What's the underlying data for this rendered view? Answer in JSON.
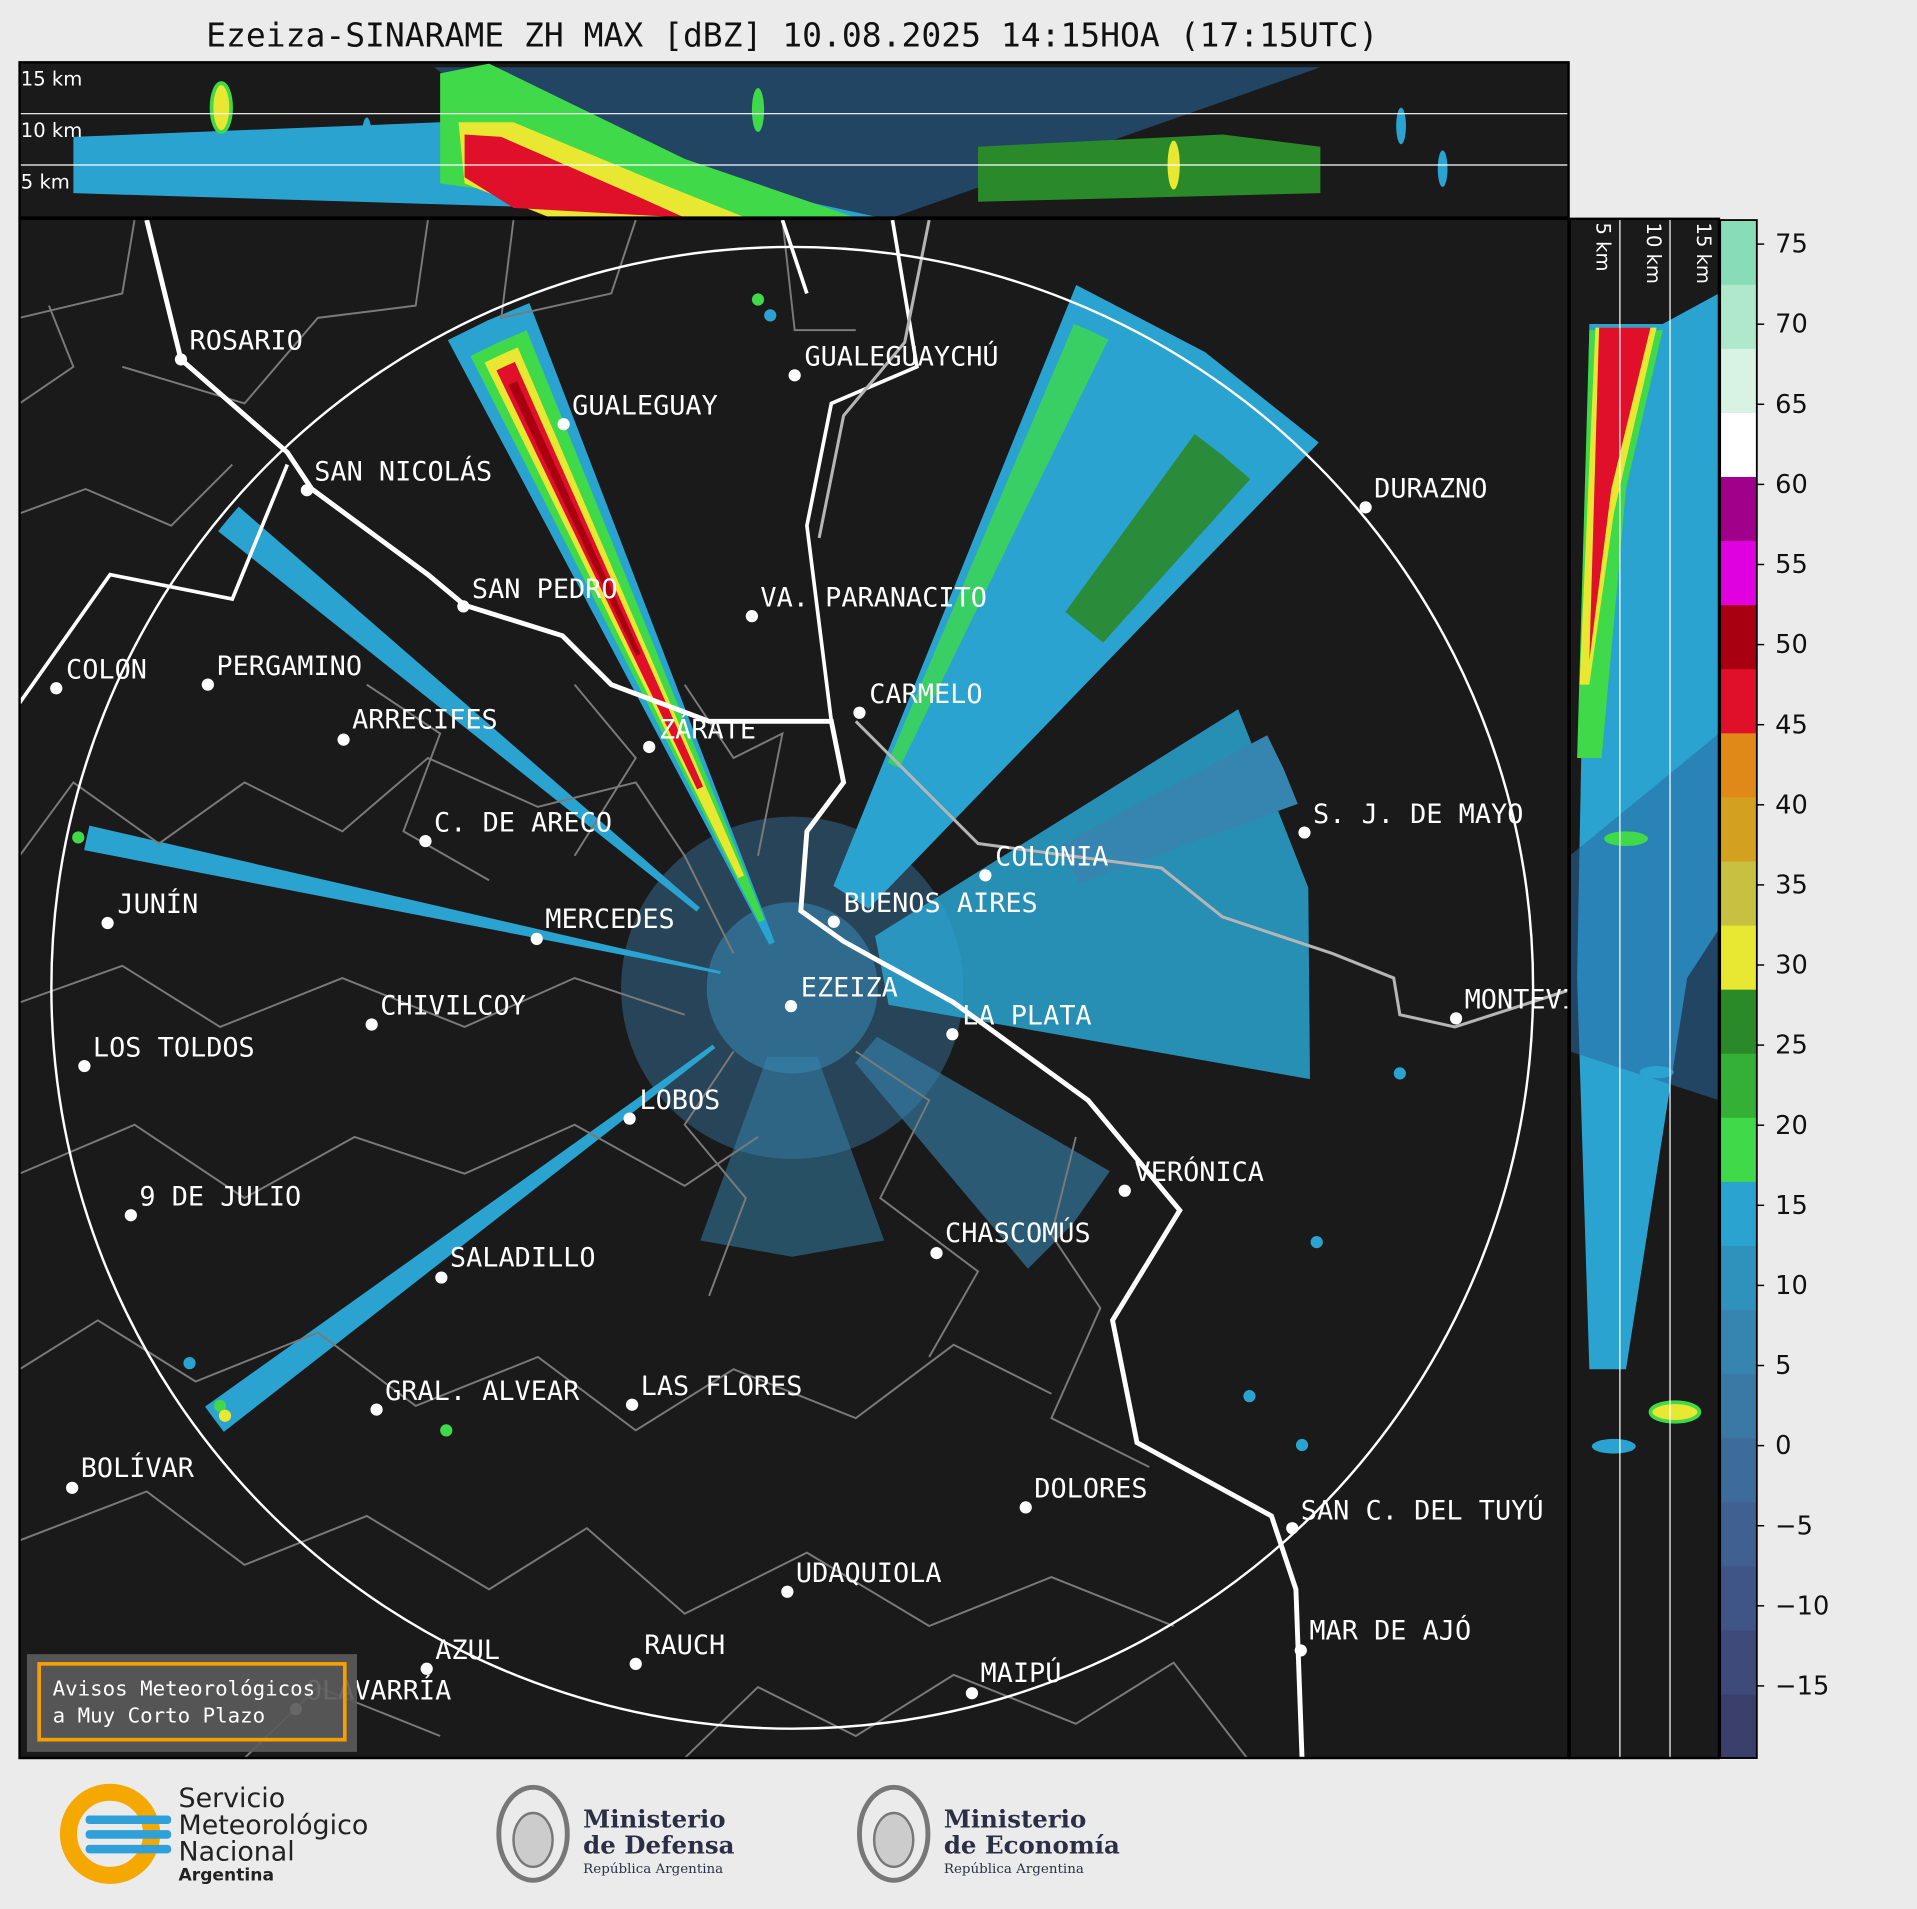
{
  "header": {
    "title": "Ezeiza-SINARAME ZH MAX [dBZ] 10.08.2025 14:15HOA (17:15UTC)"
  },
  "profile_top": {
    "height_labels": [
      "15 km",
      "10 km",
      "5 km"
    ]
  },
  "profile_right": {
    "height_labels": [
      "5 km",
      "10 km",
      "15 km"
    ]
  },
  "map": {
    "cities": [
      "ROSARIO",
      "GUALEGUAYCHÚ",
      "GUALEGUAY",
      "SAN NICOLÁS",
      "DURAZNO",
      "SAN PEDRO",
      "VA. PARANACITO",
      "COLON",
      "PERGAMINO",
      "CARMELO",
      "ARRECIFES",
      "ZÁRATE",
      "C. DE ARECO",
      "S. J. DE MAYO",
      "COLONIA",
      "BUENOS AIRES",
      "JUNÍN",
      "MERCEDES",
      "EZEIZA",
      "MONTEVIDEO",
      "CHIVILCOY",
      "LA PLATA",
      "LOS TOLDOS",
      "LOBOS",
      "VERÓNICA",
      "9 DE JULIO",
      "CHASCOMÚS",
      "SALADILLO",
      "GRAL. ALVEAR",
      "LAS FLORES",
      "BOLÍVAR",
      "DOLORES",
      "SAN C. DEL TUYÚ",
      "UDAQUIOLA",
      "MAR DE AJÓ",
      "AZUL",
      "RAUCH",
      "OLAVARRÍA",
      "MAIPÚ"
    ]
  },
  "colorbar": {
    "clim": [
      -19.5,
      76.5
    ],
    "ticks": [
      75,
      70,
      65,
      60,
      55,
      50,
      45,
      40,
      35,
      30,
      25,
      20,
      15,
      10,
      5,
      0,
      {
        "value": -5,
        "label": "−5"
      },
      {
        "value": -10,
        "label": "−10"
      },
      {
        "value": -15,
        "label": "−15"
      }
    ],
    "colors": [
      "#3b3f6b",
      "#3d4a7a",
      "#3f5585",
      "#3f6090",
      "#3e6c9a",
      "#3a78a5",
      "#3585b0",
      "#2f92bc",
      "#2aa3d0",
      "#3fd94a",
      "#33b035",
      "#2a8a2a",
      "#e8e832",
      "#c8c040",
      "#d4a020",
      "#e08818",
      "#e0102a",
      "#a80010",
      "#e000e0",
      "#a0008a",
      "#ffffff",
      "#d8f2e4",
      "#b0e8cc",
      "#88dcb8"
    ]
  },
  "notice": {
    "lines": [
      "Avisos Meteorológicos",
      "a Muy Corto Plazo"
    ]
  },
  "logos": {
    "smn": [
      "Servicio",
      "Meteorológico",
      "Nacional",
      "Argentina"
    ],
    "defensa": [
      "Ministerio",
      "de Defensa",
      "República Argentina"
    ],
    "economia": [
      "Ministerio",
      "de Economía",
      "República Argentina"
    ]
  }
}
